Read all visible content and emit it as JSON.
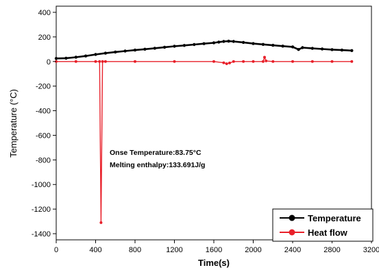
{
  "chart_data": {
    "type": "line",
    "title": "",
    "xlabel": "Time(s)",
    "ylabel": "Temperature (°C)",
    "xlim": [
      0,
      3200
    ],
    "ylim": [
      -1450,
      450
    ],
    "x_ticks": [
      0,
      400,
      800,
      1200,
      1600,
      2000,
      2400,
      2800,
      3200
    ],
    "y_ticks": [
      400,
      200,
      0,
      -200,
      -400,
      -600,
      -800,
      -1000,
      -1200,
      -1400
    ],
    "grid": false,
    "legend_position": "bottom-right",
    "series": [
      {
        "name": "Temperature",
        "color": "#000000",
        "marker": "circle",
        "x": [
          0,
          100,
          200,
          300,
          400,
          500,
          600,
          700,
          800,
          900,
          1000,
          1100,
          1200,
          1300,
          1400,
          1500,
          1600,
          1650,
          1700,
          1750,
          1800,
          1900,
          2000,
          2100,
          2200,
          2300,
          2400,
          2460,
          2500,
          2600,
          2700,
          2800,
          2900,
          3000
        ],
        "y": [
          25,
          27,
          35,
          45,
          57,
          68,
          77,
          85,
          93,
          100,
          108,
          116,
          124,
          131,
          138,
          145,
          152,
          158,
          163,
          165,
          163,
          155,
          146,
          139,
          132,
          125,
          119,
          98,
          113,
          107,
          102,
          97,
          93,
          89
        ]
      },
      {
        "name": "Heat flow",
        "color": "#e8202a",
        "marker": "circle",
        "x": [
          0,
          200,
          400,
          440,
          455,
          470,
          500,
          800,
          1200,
          1600,
          1700,
          1730,
          1760,
          1800,
          1900,
          2000,
          2100,
          2115,
          2130,
          2200,
          2400,
          2600,
          2800,
          3000
        ],
        "y": [
          0,
          0,
          0,
          0,
          -1310,
          0,
          0,
          0,
          0,
          0,
          -10,
          -18,
          -12,
          0,
          0,
          0,
          0,
          35,
          5,
          0,
          0,
          0,
          0,
          0
        ]
      }
    ],
    "annotations": [
      "Onse Temperature:83.75°C",
      "Melting enthalpy:133.691J/g"
    ]
  }
}
